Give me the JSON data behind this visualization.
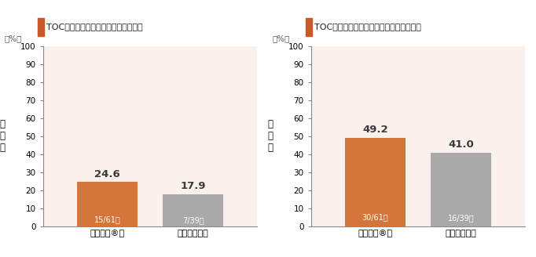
{
  "chart1": {
    "title": "TOC時点の臨床効果（主要評価項目）",
    "categories": [
      "ザバクサ®群",
      "メロペネム群"
    ],
    "values": [
      24.6,
      17.9
    ],
    "bar_labels": [
      "15/61例",
      "7/39例"
    ],
    "bar_colors": [
      "#D4763B",
      "#A9A9A9"
    ],
    "ylabel": "有\n効\n率",
    "ylabel_unit": "（%）",
    "ylim": [
      0,
      100
    ],
    "yticks": [
      0,
      10,
      20,
      30,
      40,
      50,
      60,
      70,
      80,
      90,
      100
    ],
    "bg_color": "#FAF0EC"
  },
  "chart2": {
    "title": "TOC時点の細菌学的効果（副次評価項目）",
    "categories": [
      "ザバクサ®群",
      "メロペネム群"
    ],
    "values": [
      49.2,
      41.0
    ],
    "bar_labels": [
      "30/61例",
      "16/39例"
    ],
    "bar_colors": [
      "#D4763B",
      "#A9A9A9"
    ],
    "ylabel": "有\n効\n率",
    "ylabel_unit": "（%）",
    "ylim": [
      0,
      100
    ],
    "yticks": [
      0,
      10,
      20,
      30,
      40,
      50,
      60,
      70,
      80,
      90,
      100
    ],
    "bg_color": "#FAF0EC"
  },
  "title_square_color": "#C85A2A",
  "title_fontsize": 8.0,
  "value_label_color": "#3A3A3A",
  "bar_inner_label_color": "#FFFFFF",
  "figure_bg": "#FFFFFF"
}
